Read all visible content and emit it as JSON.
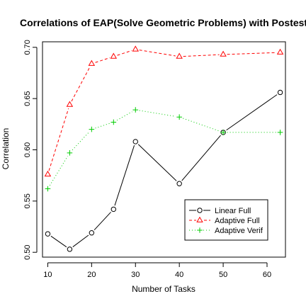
{
  "chart_data": {
    "type": "line",
    "title": "Correlations of EAP(Solve Geometric Problems) with Postest",
    "xlabel": "Number of Tasks",
    "ylabel": "Correlation",
    "x": [
      10,
      15,
      20,
      25,
      30,
      40,
      50,
      63
    ],
    "xticks": [
      10,
      20,
      30,
      40,
      50,
      60
    ],
    "yticks": [
      0.5,
      0.55,
      0.6,
      0.65,
      0.7
    ],
    "ytick_labels": [
      "0.50",
      "0.55",
      "0.60",
      "0.65",
      "0.70"
    ],
    "xlim": [
      8.8,
      64.2
    ],
    "ylim": [
      0.4953,
      0.7054
    ],
    "grid": false,
    "legend_position": "bottom-right",
    "series": [
      {
        "name": "Linear Full",
        "color": "#000000",
        "marker": "circle",
        "line": "solid",
        "values": [
          0.518,
          0.503,
          0.519,
          0.542,
          0.608,
          0.567,
          0.617,
          0.656
        ]
      },
      {
        "name": "Adaptive Full",
        "color": "#ff0000",
        "marker": "triangle",
        "line": "dashed",
        "values": [
          0.576,
          0.644,
          0.684,
          0.691,
          0.698,
          0.691,
          0.693,
          0.695
        ]
      },
      {
        "name": "Adaptive Verif",
        "color": "#00cc00",
        "marker": "plus",
        "line": "dotted",
        "values": [
          0.562,
          0.597,
          0.62,
          0.627,
          0.639,
          0.632,
          0.617,
          0.617
        ]
      }
    ]
  }
}
